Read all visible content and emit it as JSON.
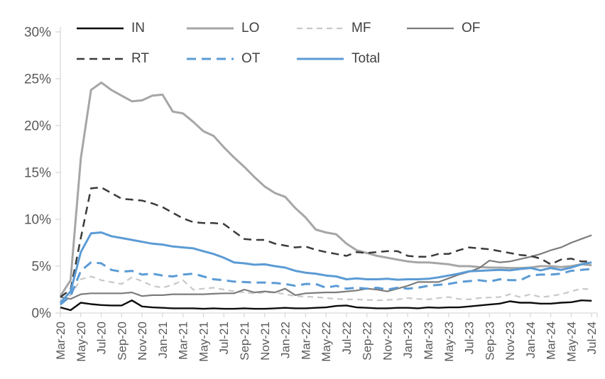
{
  "chart_data": {
    "type": "line",
    "title": "",
    "xlabel": "",
    "ylabel": "",
    "ylim": [
      0,
      30
    ],
    "ytick_step": 5,
    "ytick_suffix": "%",
    "grid": false,
    "legend_position": "top",
    "x_label_every": 2,
    "axis_color": "#d9d9d9",
    "tick_text_color": "#595959",
    "legend_text_color": "#404040",
    "x_categories": [
      "Mar-20",
      "Apr-20",
      "May-20",
      "Jun-20",
      "Jul-20",
      "Aug-20",
      "Sep-20",
      "Oct-20",
      "Nov-20",
      "Dec-20",
      "Jan-21",
      "Feb-21",
      "Mar-21",
      "Apr-21",
      "May-21",
      "Jun-21",
      "Jul-21",
      "Aug-21",
      "Sep-21",
      "Oct-21",
      "Nov-21",
      "Dec-21",
      "Jan-22",
      "Feb-22",
      "Mar-22",
      "Apr-22",
      "May-22",
      "Jun-22",
      "Jul-22",
      "Aug-22",
      "Sep-22",
      "Oct-22",
      "Nov-22",
      "Dec-22",
      "Jan-23",
      "Feb-23",
      "Mar-23",
      "Apr-23",
      "May-23",
      "Jun-23",
      "Jul-23",
      "Aug-23",
      "Sep-23",
      "Oct-23",
      "Nov-23",
      "Dec-23",
      "Jan-24",
      "Feb-24",
      "Mar-24",
      "Apr-24",
      "May-24",
      "Jun-24",
      "Jul-24"
    ],
    "series": [
      {
        "name": "IN",
        "color": "#0d0d0d",
        "dash": null,
        "width": 2.4,
        "values": [
          0.6,
          0.3,
          1.1,
          0.95,
          0.85,
          0.8,
          0.8,
          1.35,
          0.7,
          0.6,
          0.55,
          0.5,
          0.5,
          0.5,
          0.45,
          0.5,
          0.45,
          0.45,
          0.5,
          0.45,
          0.45,
          0.5,
          0.55,
          0.5,
          0.5,
          0.55,
          0.6,
          0.75,
          0.8,
          0.6,
          0.55,
          0.5,
          0.5,
          0.55,
          0.55,
          0.5,
          0.6,
          0.55,
          0.6,
          0.6,
          0.7,
          0.8,
          0.9,
          1.0,
          1.25,
          1.1,
          1.1,
          1.0,
          1.0,
          1.1,
          1.15,
          1.35,
          1.3
        ]
      },
      {
        "name": "LO",
        "color": "#a6a6a6",
        "dash": null,
        "width": 3,
        "values": [
          1.8,
          3.5,
          16.5,
          23.8,
          24.6,
          23.8,
          23.2,
          22.6,
          22.7,
          23.2,
          23.3,
          21.5,
          21.3,
          20.4,
          19.4,
          18.9,
          17.7,
          16.6,
          15.6,
          14.5,
          13.5,
          12.8,
          12.4,
          11.2,
          10.2,
          8.9,
          8.6,
          8.4,
          7.4,
          6.7,
          6.4,
          6.1,
          5.9,
          5.7,
          5.5,
          5.4,
          5.4,
          5.3,
          5.2,
          5.0,
          5.0,
          4.9,
          4.85,
          4.85,
          4.8,
          4.8,
          4.85,
          5.0,
          5.0,
          4.9,
          5.0,
          5.2,
          5.1
        ]
      },
      {
        "name": "MF",
        "color": "#c8c8c8",
        "dash": "8 6",
        "width": 2.2,
        "values": [
          1.3,
          1.9,
          3.6,
          3.9,
          3.5,
          3.3,
          3.1,
          3.8,
          3.4,
          2.9,
          2.7,
          3.0,
          3.5,
          2.5,
          2.6,
          2.7,
          2.5,
          2.3,
          2.2,
          2.1,
          2.2,
          2.2,
          2.0,
          1.8,
          1.75,
          1.7,
          1.6,
          1.5,
          1.45,
          1.45,
          1.4,
          1.35,
          1.4,
          1.45,
          1.6,
          1.5,
          1.45,
          1.6,
          1.7,
          1.5,
          1.45,
          1.6,
          1.65,
          1.7,
          2.0,
          1.7,
          2.0,
          1.7,
          1.8,
          2.0,
          2.3,
          2.6,
          2.5
        ]
      },
      {
        "name": "OF",
        "color": "#7c7c7c",
        "dash": null,
        "width": 2.2,
        "values": [
          1.7,
          1.5,
          2.0,
          2.1,
          2.1,
          2.1,
          2.1,
          2.2,
          1.8,
          1.9,
          1.9,
          2.0,
          2.0,
          2.0,
          2.0,
          2.05,
          2.1,
          2.1,
          2.5,
          2.2,
          2.3,
          2.2,
          2.6,
          1.9,
          2.1,
          2.15,
          2.2,
          2.2,
          2.3,
          2.4,
          2.6,
          2.5,
          2.3,
          2.6,
          2.9,
          3.3,
          3.3,
          3.3,
          3.7,
          4.1,
          4.4,
          4.8,
          5.6,
          5.4,
          5.5,
          5.75,
          6.0,
          6.3,
          6.7,
          7.0,
          7.5,
          7.9,
          8.3
        ]
      },
      {
        "name": "RT",
        "color": "#3b3b3b",
        "dash": "11 7",
        "width": 2.5,
        "values": [
          1.7,
          2.5,
          8.0,
          13.3,
          13.4,
          12.8,
          12.2,
          12.1,
          12.0,
          11.7,
          11.3,
          10.7,
          10.1,
          9.7,
          9.6,
          9.6,
          9.5,
          8.7,
          7.9,
          7.8,
          7.8,
          7.4,
          7.2,
          7.0,
          7.1,
          6.75,
          6.5,
          6.3,
          6.1,
          6.5,
          6.4,
          6.5,
          6.6,
          6.6,
          6.1,
          6.0,
          6.0,
          6.3,
          6.3,
          6.7,
          7.0,
          6.9,
          6.8,
          6.6,
          6.4,
          6.2,
          6.1,
          5.8,
          5.2,
          5.7,
          5.8,
          5.5,
          5.5
        ]
      },
      {
        "name": "OT",
        "color": "#5b9bd5",
        "dash": "13 8",
        "width": 3,
        "values": [
          0.9,
          1.8,
          4.5,
          5.4,
          5.3,
          4.6,
          4.4,
          4.5,
          4.1,
          4.2,
          4.0,
          3.9,
          4.1,
          4.2,
          3.9,
          3.6,
          3.5,
          3.35,
          3.3,
          3.25,
          3.25,
          3.2,
          3.1,
          2.9,
          3.1,
          3.1,
          2.7,
          2.9,
          2.6,
          2.7,
          2.6,
          2.7,
          2.5,
          2.7,
          2.6,
          2.7,
          2.9,
          3.0,
          3.1,
          3.3,
          3.4,
          3.5,
          3.35,
          3.6,
          3.5,
          3.5,
          4.0,
          4.1,
          4.1,
          4.2,
          4.5,
          4.6,
          4.7
        ]
      },
      {
        "name": "Total",
        "color": "#5b9bd5",
        "dash": null,
        "width": 3,
        "values": [
          1.1,
          2.3,
          6.5,
          8.5,
          8.6,
          8.2,
          8.0,
          7.8,
          7.6,
          7.4,
          7.3,
          7.1,
          7.0,
          6.9,
          6.6,
          6.3,
          5.9,
          5.4,
          5.3,
          5.15,
          5.2,
          5.0,
          4.85,
          4.5,
          4.3,
          4.2,
          4.0,
          3.9,
          3.6,
          3.7,
          3.6,
          3.6,
          3.65,
          3.55,
          3.6,
          3.6,
          3.65,
          3.8,
          4.0,
          4.2,
          4.45,
          4.5,
          4.55,
          4.6,
          4.55,
          4.7,
          4.8,
          4.55,
          4.8,
          4.6,
          4.85,
          5.2,
          5.4
        ]
      }
    ]
  }
}
